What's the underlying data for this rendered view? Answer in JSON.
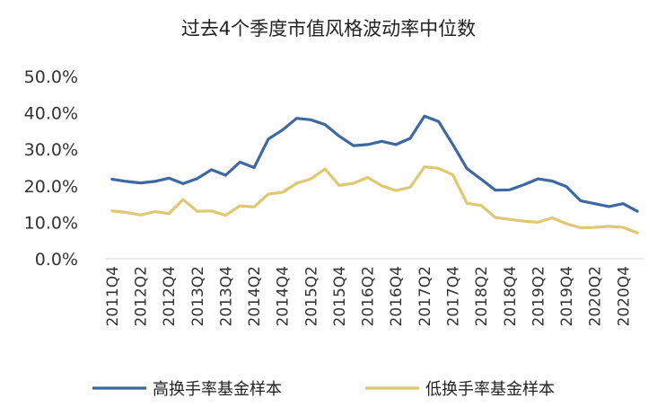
{
  "chart_data": {
    "type": "line",
    "title": "过去4个季度市值风格波动率中位数",
    "xlabel": "",
    "ylabel": "",
    "ylim": [
      0,
      50
    ],
    "yticks": [
      "0.0%",
      "10.0%",
      "20.0%",
      "30.0%",
      "40.0%",
      "50.0%"
    ],
    "grid": false,
    "legend_position": "bottom",
    "x": [
      "2011Q4",
      "2012Q1",
      "2012Q2",
      "2012Q3",
      "2012Q4",
      "2013Q1",
      "2013Q2",
      "2013Q3",
      "2013Q4",
      "2014Q1",
      "2014Q2",
      "2014Q3",
      "2014Q4",
      "2015Q1",
      "2015Q2",
      "2015Q3",
      "2015Q4",
      "2016Q1",
      "2016Q2",
      "2016Q3",
      "2016Q4",
      "2017Q1",
      "2017Q2",
      "2017Q3",
      "2017Q4",
      "2018Q1",
      "2018Q2",
      "2018Q3",
      "2018Q4",
      "2019Q1",
      "2019Q2",
      "2019Q3",
      "2019Q4",
      "2020Q1",
      "2020Q2",
      "2020Q3",
      "2020Q4",
      "2021Q1"
    ],
    "x_tick_labels": [
      "2011Q4",
      "2012Q2",
      "2012Q4",
      "2013Q2",
      "2013Q4",
      "2014Q2",
      "2014Q4",
      "2015Q2",
      "2015Q4",
      "2016Q2",
      "2016Q4",
      "2017Q2",
      "2017Q4",
      "2018Q2",
      "2018Q4",
      "2019Q2",
      "2019Q4",
      "2020Q2",
      "2020Q4"
    ],
    "series": [
      {
        "name": "高换手率基金样本",
        "color": "#3e68a0",
        "values": [
          21.8,
          21.2,
          20.8,
          21.2,
          22.1,
          20.6,
          22.0,
          24.4,
          22.9,
          26.5,
          25.0,
          32.8,
          35.3,
          38.5,
          38.1,
          36.8,
          33.6,
          31.0,
          31.3,
          32.2,
          31.3,
          33.0,
          39.1,
          37.6,
          31.3,
          24.7,
          21.8,
          18.8,
          18.9,
          20.3,
          21.9,
          21.3,
          19.8,
          15.9,
          15.1,
          14.3,
          15.1,
          13.0
        ]
      },
      {
        "name": "低换手率基金样本",
        "color": "#dfc872",
        "values": [
          13.1,
          12.7,
          12.0,
          12.9,
          12.4,
          16.2,
          13.0,
          13.1,
          11.9,
          14.5,
          14.2,
          17.7,
          18.2,
          20.7,
          21.9,
          24.6,
          20.1,
          20.7,
          22.3,
          20.0,
          18.7,
          19.6,
          25.2,
          24.8,
          23.0,
          15.2,
          14.6,
          11.3,
          10.8,
          10.3,
          10.0,
          11.2,
          9.6,
          8.5,
          8.6,
          8.9,
          8.6,
          7.1
        ]
      }
    ]
  }
}
